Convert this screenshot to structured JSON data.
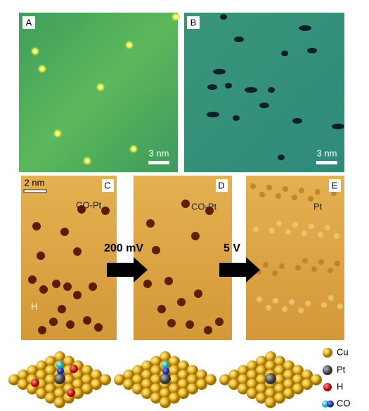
{
  "panels": [
    {
      "label": "A",
      "scale_bar": "3 nm"
    },
    {
      "label": "B",
      "scale_bar": "3 nm"
    },
    {
      "label": "C",
      "scale_bar": "2 nm",
      "annotations": [
        "CO-Pt",
        "H"
      ]
    },
    {
      "label": "D",
      "annotations": [
        "CO-Pt"
      ]
    },
    {
      "label": "E",
      "annotations": [
        "Pt"
      ]
    }
  ],
  "arrows": [
    "200 mV",
    "5 V"
  ],
  "legend": [
    "Cu",
    "Pt",
    "H",
    "CO"
  ]
}
